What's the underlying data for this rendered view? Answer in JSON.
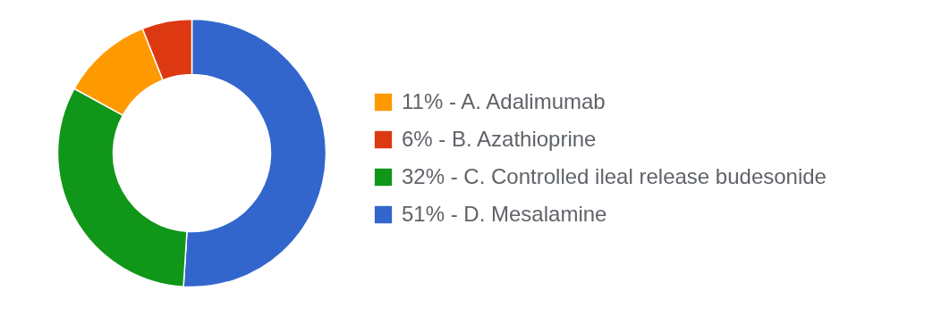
{
  "chart_data": {
    "type": "donut",
    "categories": [
      "11% - A. Adalimumab",
      "6% - B. Azathioprine",
      "32% - C. Controlled ileal release budesonide",
      "51% - D. Mesalamine"
    ],
    "values": [
      11,
      6,
      32,
      51
    ],
    "colors": [
      "#ff9900",
      "#dc3912",
      "#109618",
      "#3366cc"
    ],
    "legend": "right"
  }
}
